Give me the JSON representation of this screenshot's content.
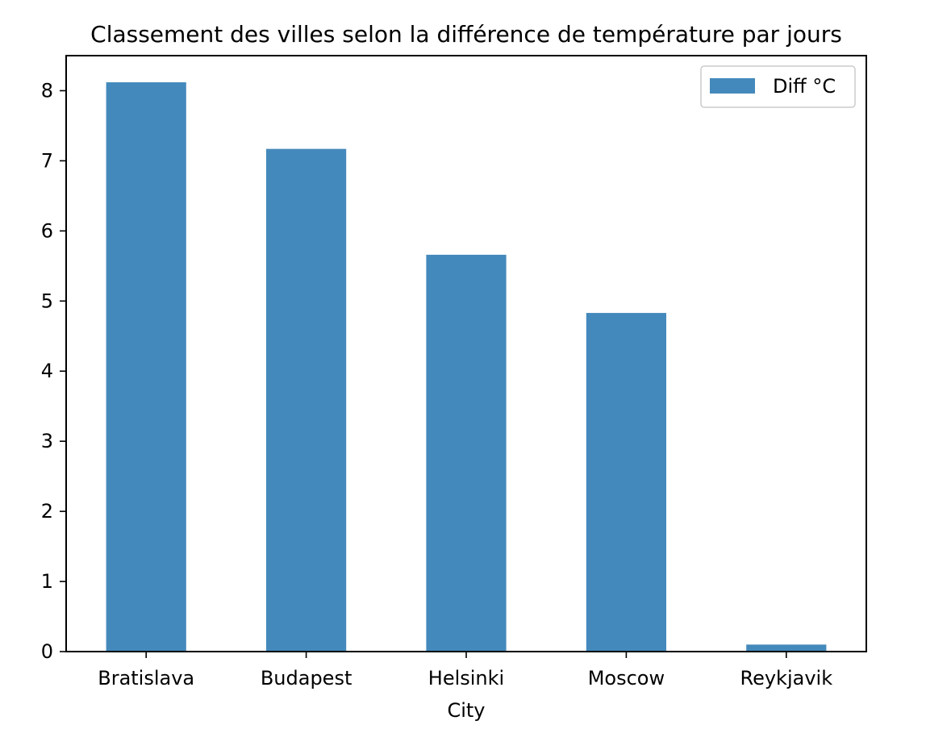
{
  "chart_data": {
    "type": "bar",
    "title": "Classement des villes selon la différence de température par jours",
    "xlabel": "City",
    "ylabel": "",
    "categories": [
      "Bratislava",
      "Budapest",
      "Helsinki",
      "Moscow",
      "Reykjavik"
    ],
    "series": [
      {
        "name": "Diff °C",
        "values": [
          8.12,
          7.17,
          5.66,
          4.83,
          0.1
        ],
        "color": "#4489bc"
      }
    ],
    "ylim": [
      0,
      8.5
    ],
    "yticks": [
      "0",
      "1",
      "2",
      "3",
      "4",
      "5",
      "6",
      "7",
      "8"
    ],
    "grid": false,
    "legend_position": "top-right"
  }
}
